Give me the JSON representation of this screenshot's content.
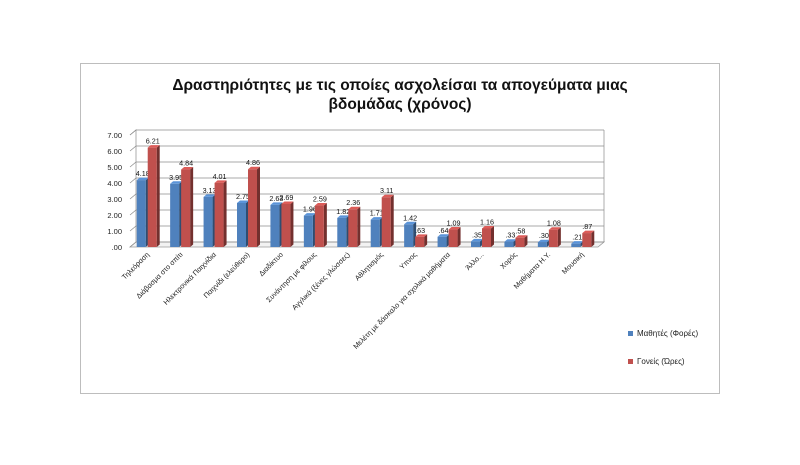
{
  "chart_data": {
    "type": "bar",
    "title_lines": [
      "Δραστηριότητες με τις οποίες ασχολείσαι τα απογεύματα μιας",
      "βδομάδας (χρόνος)"
    ],
    "categories": [
      "Τηλεόραση",
      "Διάβασμα στο σπίτι",
      "Ηλεκτρονικά Παιχνίδια",
      "Παιχνίδι (ελεύθερο)",
      "Διαδίκτυο",
      "Συνάντηση με φίλους",
      "Αγγλικά (ξένες γλώσσες)",
      "Αθλητισμός",
      "Ύπνος",
      "Μελέτη με δάσκαλο για σχολικά μαθήματα",
      "Άλλο...",
      "Χορός",
      "Μαθήματα Η.Υ.",
      "Μουσική"
    ],
    "category_labels": [
      "Τηλεόραση",
      "Διάβασμα στο σπίτι",
      "Ηλεκτρονικά Παιχνίδια",
      "Παιχνίδι (ελεύθερο)",
      "Διαδίκτυο",
      "Συνάντηση με φίλους",
      "Αγγλικά (ξένες γλώσσες)",
      "Αθλητισμός",
      "Υπνος",
      "Μελέτη με δάσκαλο για σχολικά μαθήματα",
      "Άλλο...",
      "Χορός",
      "Μαθήματα Η.Υ.",
      "Μουσική"
    ],
    "series": [
      {
        "name": "Μαθητές (Φορές)",
        "color": "#4f81bd",
        "values": [
          4.18,
          3.95,
          3.13,
          2.75,
          2.63,
          1.96,
          1.82,
          1.71,
          1.42,
          0.64,
          0.35,
          0.33,
          0.3,
          0.21
        ],
        "labels": [
          "4.18",
          "3.95",
          "3.13",
          "2.75",
          "2.63",
          "1.96",
          "1.82",
          "1.71",
          "1.42",
          ".64",
          ".35",
          ".33",
          ".30",
          ".21"
        ]
      },
      {
        "name": "Γονείς (Ώρες)",
        "color": "#c0504d",
        "values": [
          6.21,
          4.84,
          4.01,
          4.86,
          2.69,
          2.59,
          2.36,
          3.11,
          0.63,
          1.09,
          1.16,
          0.58,
          1.08,
          0.87
        ],
        "labels": [
          "6.21",
          "4.84",
          "4.01",
          "4.86",
          "2.69",
          "2.59",
          "2.36",
          "3.11",
          ".63",
          "1.09",
          "1.16",
          ".58",
          "1.08",
          ".87"
        ]
      }
    ],
    "yticks": [
      ".00",
      "1.00",
      "2.00",
      "3.00",
      "4.00",
      "5.00",
      "6.00",
      "7.00"
    ],
    "ylim": [
      0,
      7
    ],
    "grid": true,
    "legend_position": "bottom-right",
    "style": "3d-clustered-column"
  }
}
